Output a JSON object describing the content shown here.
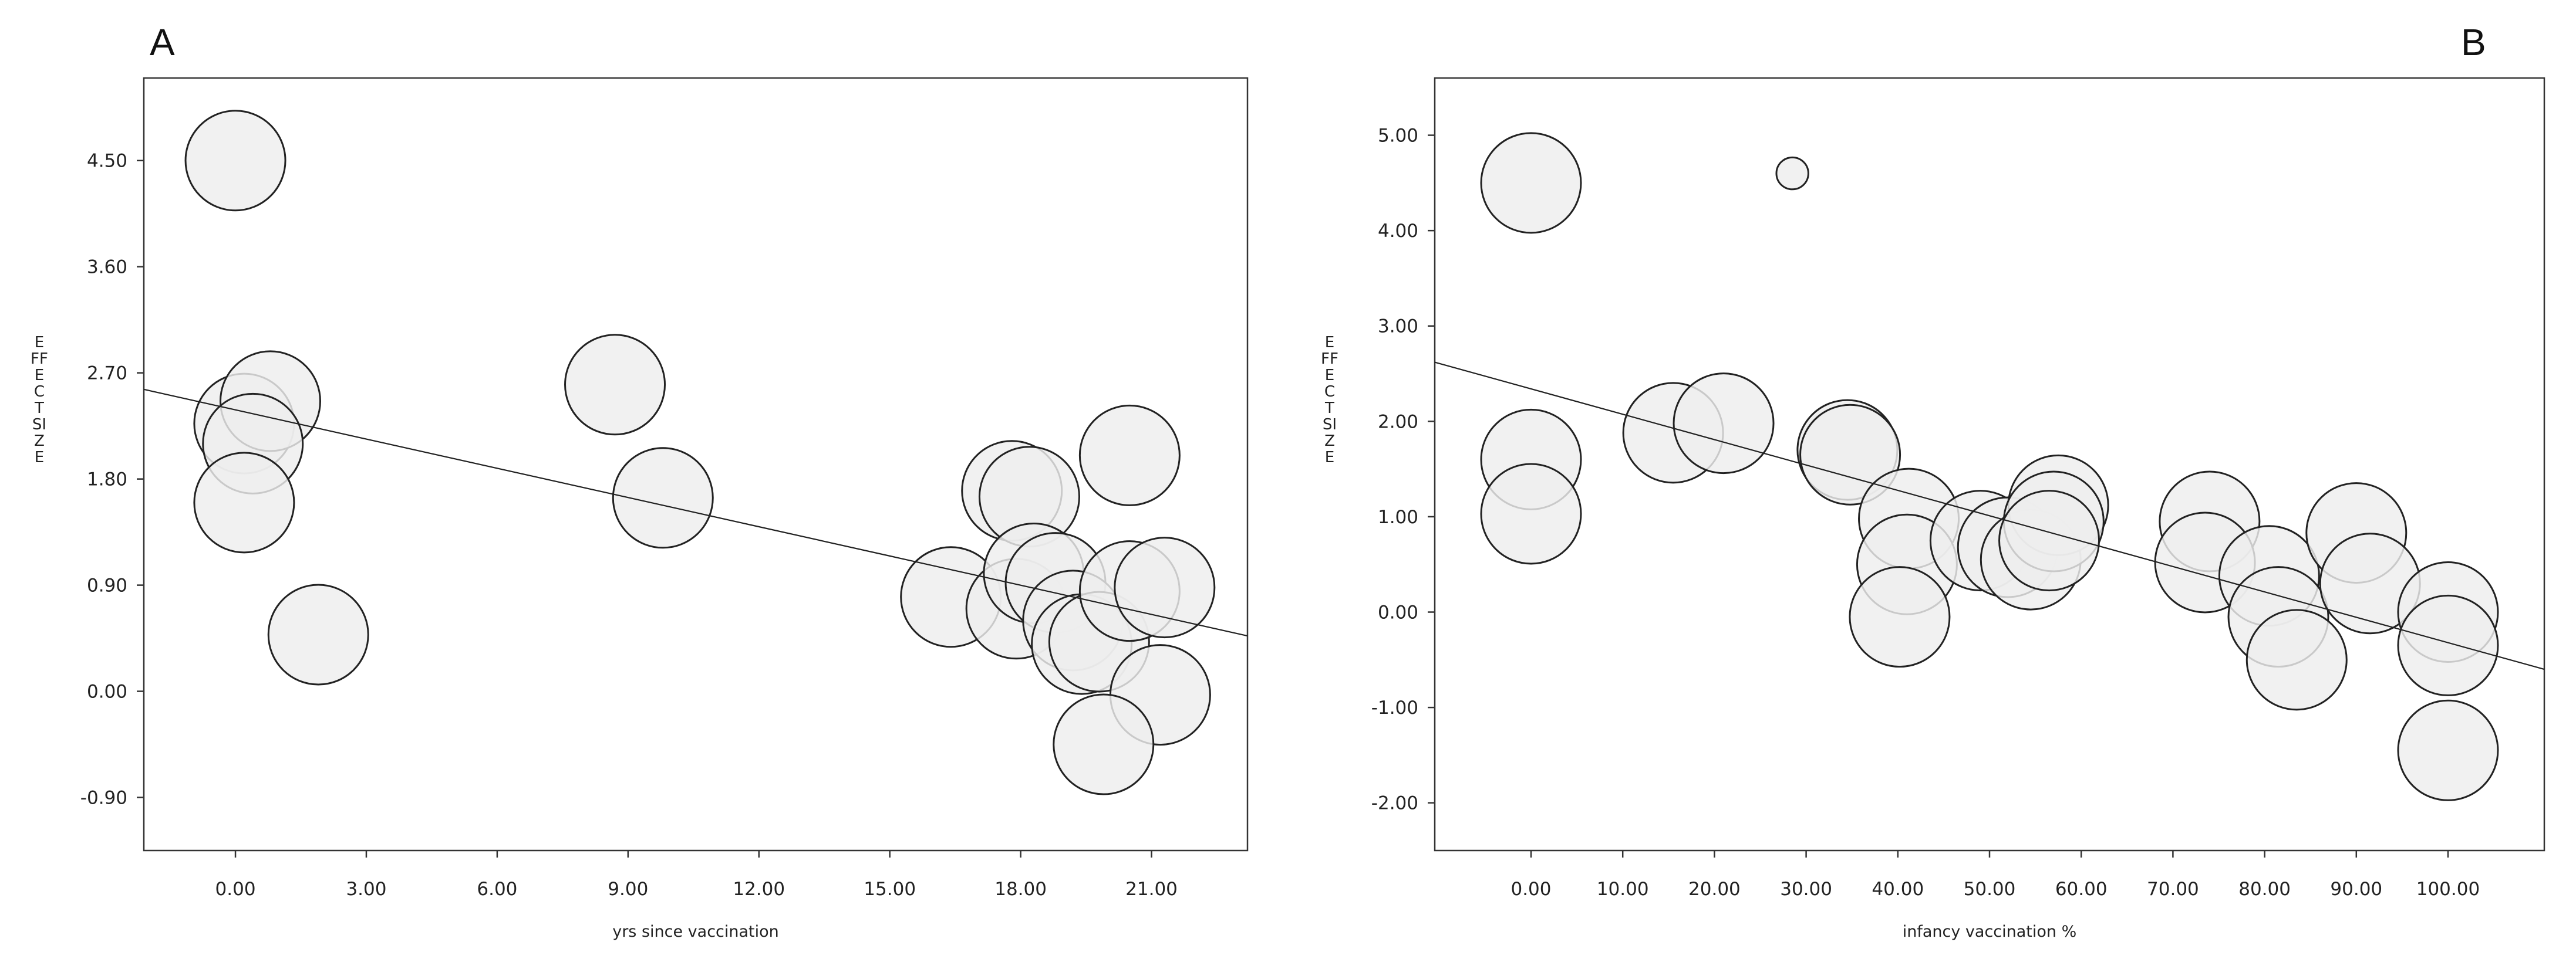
{
  "chart_data": [
    {
      "panel": "A",
      "type": "scatter",
      "xlabel": "yrs since vaccination",
      "ylabel": "EFFECT SIZE",
      "xlim": [
        -2.1,
        23.2
      ],
      "ylim": [
        -1.35,
        5.2
      ],
      "xticks": [
        "0.00",
        "3.00",
        "6.00",
        "9.00",
        "12.00",
        "15.00",
        "18.00",
        "21.00"
      ],
      "xtick_values": [
        0,
        3,
        6,
        9,
        12,
        15,
        18,
        21
      ],
      "yticks": [
        "-0.90",
        "0.00",
        "0.90",
        "1.80",
        "2.70",
        "3.60",
        "4.50"
      ],
      "ytick_values": [
        -0.9,
        0,
        0.9,
        1.8,
        2.7,
        3.6,
        4.5
      ],
      "grid": false,
      "regression_line": {
        "x": [
          -2.1,
          23.2
        ],
        "y": [
          2.56,
          0.47
        ]
      },
      "points": [
        {
          "x": 0.0,
          "y": 4.5,
          "size": 1
        },
        {
          "x": 0.2,
          "y": 2.27,
          "size": 1
        },
        {
          "x": 0.8,
          "y": 2.46,
          "size": 1
        },
        {
          "x": 0.4,
          "y": 2.1,
          "size": 1
        },
        {
          "x": 0.2,
          "y": 1.6,
          "size": 1
        },
        {
          "x": 1.9,
          "y": 0.48,
          "size": 1
        },
        {
          "x": 8.7,
          "y": 2.6,
          "size": 1
        },
        {
          "x": 9.8,
          "y": 1.64,
          "size": 1
        },
        {
          "x": 16.4,
          "y": 0.8,
          "size": 1
        },
        {
          "x": 17.8,
          "y": 1.7,
          "size": 1
        },
        {
          "x": 18.2,
          "y": 1.65,
          "size": 1
        },
        {
          "x": 17.9,
          "y": 0.7,
          "size": 1
        },
        {
          "x": 18.3,
          "y": 1.0,
          "size": 1
        },
        {
          "x": 18.8,
          "y": 0.92,
          "size": 1
        },
        {
          "x": 19.2,
          "y": 0.6,
          "size": 1
        },
        {
          "x": 19.4,
          "y": 0.4,
          "size": 1
        },
        {
          "x": 19.8,
          "y": 0.42,
          "size": 1
        },
        {
          "x": 20.5,
          "y": 2.0,
          "size": 1
        },
        {
          "x": 20.5,
          "y": 0.85,
          "size": 1
        },
        {
          "x": 21.3,
          "y": 0.88,
          "size": 1
        },
        {
          "x": 21.2,
          "y": -0.03,
          "size": 1
        },
        {
          "x": 19.9,
          "y": -0.45,
          "size": 1
        }
      ]
    },
    {
      "panel": "B",
      "type": "scatter",
      "xlabel": "infancy vaccination %",
      "ylabel": "EFFECT SIZE",
      "xlim": [
        -10.5,
        110.5
      ],
      "ylim": [
        -2.5,
        5.6
      ],
      "xticks": [
        "0.00",
        "10.00",
        "20.00",
        "30.00",
        "40.00",
        "50.00",
        "60.00",
        "70.00",
        "80.00",
        "90.00",
        "100.00"
      ],
      "xtick_values": [
        0,
        10,
        20,
        30,
        40,
        50,
        60,
        70,
        80,
        90,
        100
      ],
      "yticks": [
        "-2.00",
        "-1.00",
        "0.00",
        "1.00",
        "2.00",
        "3.00",
        "4.00",
        "5.00"
      ],
      "ytick_values": [
        -2,
        -1,
        0,
        1,
        2,
        3,
        4,
        5
      ],
      "grid": false,
      "regression_line": {
        "x": [
          -10.5,
          110.5
        ],
        "y": [
          2.62,
          -0.6
        ]
      },
      "points": [
        {
          "x": 0.0,
          "y": 4.5,
          "size": 1
        },
        {
          "x": 0.0,
          "y": 1.6,
          "size": 1
        },
        {
          "x": 0.0,
          "y": 1.03,
          "size": 1
        },
        {
          "x": 28.5,
          "y": 4.6,
          "size": 0.32
        },
        {
          "x": 15.5,
          "y": 1.88,
          "size": 1
        },
        {
          "x": 21.0,
          "y": 1.98,
          "size": 1
        },
        {
          "x": 34.5,
          "y": 1.7,
          "size": 1
        },
        {
          "x": 34.8,
          "y": 1.65,
          "size": 1
        },
        {
          "x": 41.2,
          "y": 0.98,
          "size": 1
        },
        {
          "x": 41.0,
          "y": 0.5,
          "size": 1
        },
        {
          "x": 40.2,
          "y": -0.05,
          "size": 1
        },
        {
          "x": 49.0,
          "y": 0.75,
          "size": 1
        },
        {
          "x": 52.0,
          "y": 0.68,
          "size": 1
        },
        {
          "x": 54.5,
          "y": 0.55,
          "size": 1
        },
        {
          "x": 57.5,
          "y": 1.12,
          "size": 1
        },
        {
          "x": 57.0,
          "y": 0.95,
          "size": 1
        },
        {
          "x": 56.5,
          "y": 0.75,
          "size": 1
        },
        {
          "x": 74.0,
          "y": 0.95,
          "size": 1
        },
        {
          "x": 73.5,
          "y": 0.52,
          "size": 1
        },
        {
          "x": 80.5,
          "y": 0.38,
          "size": 1
        },
        {
          "x": 81.5,
          "y": -0.05,
          "size": 1
        },
        {
          "x": 83.5,
          "y": -0.5,
          "size": 1
        },
        {
          "x": 90.0,
          "y": 0.83,
          "size": 1
        },
        {
          "x": 91.5,
          "y": 0.3,
          "size": 1
        },
        {
          "x": 100.0,
          "y": 0.0,
          "size": 1
        },
        {
          "x": 100.0,
          "y": -0.35,
          "size": 1
        },
        {
          "x": 100.0,
          "y": -1.45,
          "size": 1
        }
      ]
    }
  ],
  "panels": {
    "a": {
      "letter": "A",
      "ylabel": "EFFECT SIZE",
      "xlabel": "yrs since vaccination"
    },
    "b": {
      "letter": "B",
      "ylabel": "EFFECT SIZE",
      "xlabel": "infancy vaccination %"
    }
  }
}
